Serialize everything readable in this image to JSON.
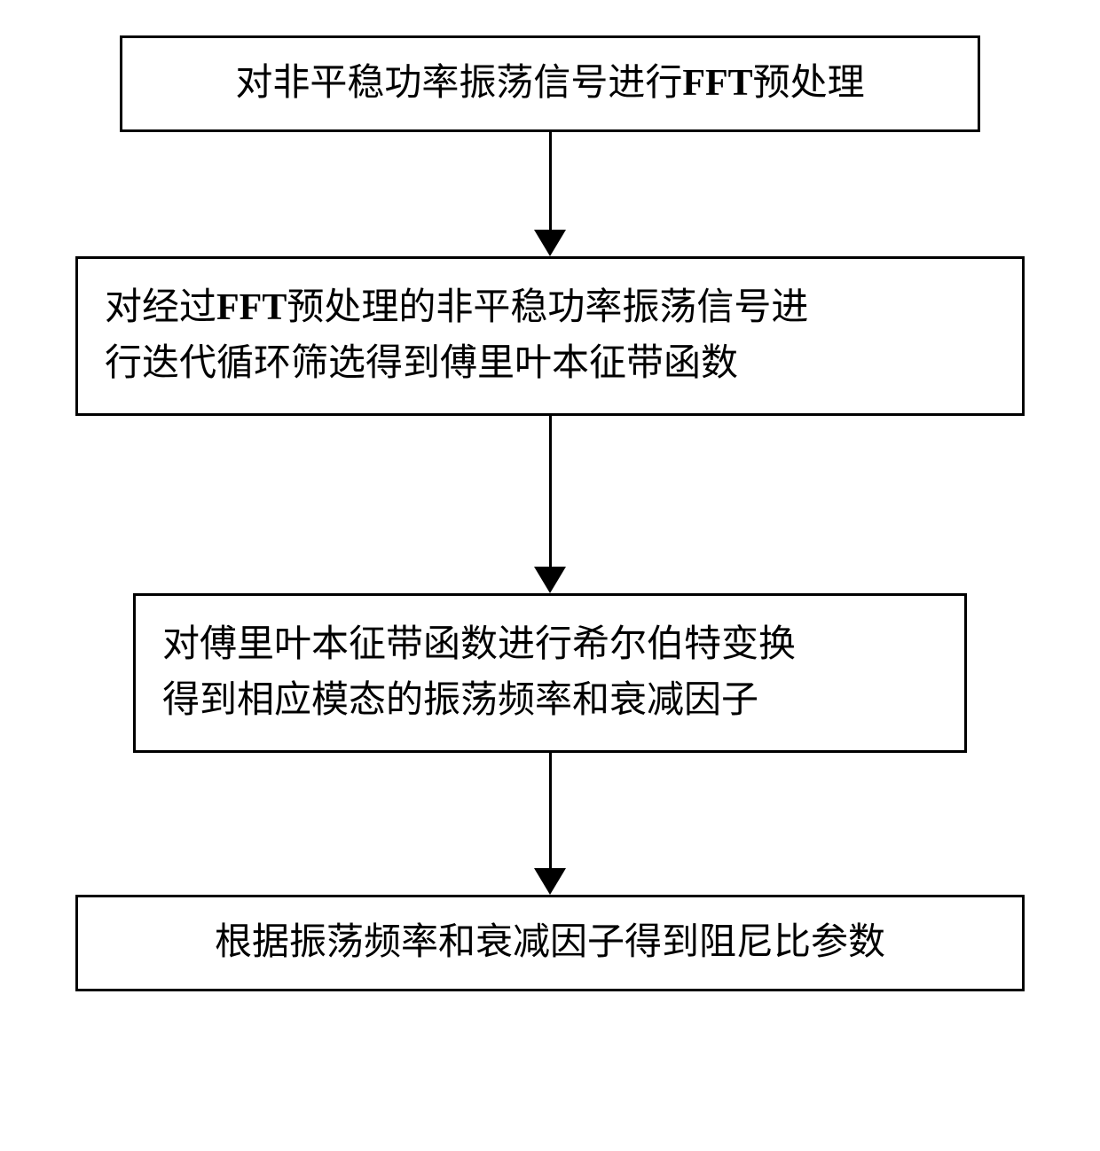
{
  "flowchart": {
    "boxes": [
      {
        "text": "对非平稳功率振荡信号进行FFT预处理",
        "border_color": "#000000",
        "background_color": "#ffffff",
        "fontsize": 42
      },
      {
        "line1": "对经过FFT预处理的非平稳功率振荡信号进",
        "line2": "行迭代循环筛选得到傅里叶本征带函数",
        "border_color": "#000000",
        "background_color": "#ffffff",
        "fontsize": 42
      },
      {
        "line1": "对傅里叶本征带函数进行希尔伯特变换",
        "line2": "得到相应模态的振荡频率和衰减因子",
        "border_color": "#000000",
        "background_color": "#ffffff",
        "fontsize": 42
      },
      {
        "text": "根据振荡频率和衰减因子得到阻尼比参数",
        "border_color": "#000000",
        "background_color": "#ffffff",
        "fontsize": 42
      }
    ],
    "arrows": [
      {
        "length": 110,
        "stroke_color": "#000000",
        "stroke_width": 3,
        "head_size": 30
      },
      {
        "length": 170,
        "stroke_color": "#000000",
        "stroke_width": 3,
        "head_size": 30
      },
      {
        "length": 130,
        "stroke_color": "#000000",
        "stroke_width": 3,
        "head_size": 30
      }
    ],
    "type": "flowchart",
    "layout": "vertical",
    "background_color": "#ffffff",
    "node_count": 4,
    "edge_count": 3
  }
}
